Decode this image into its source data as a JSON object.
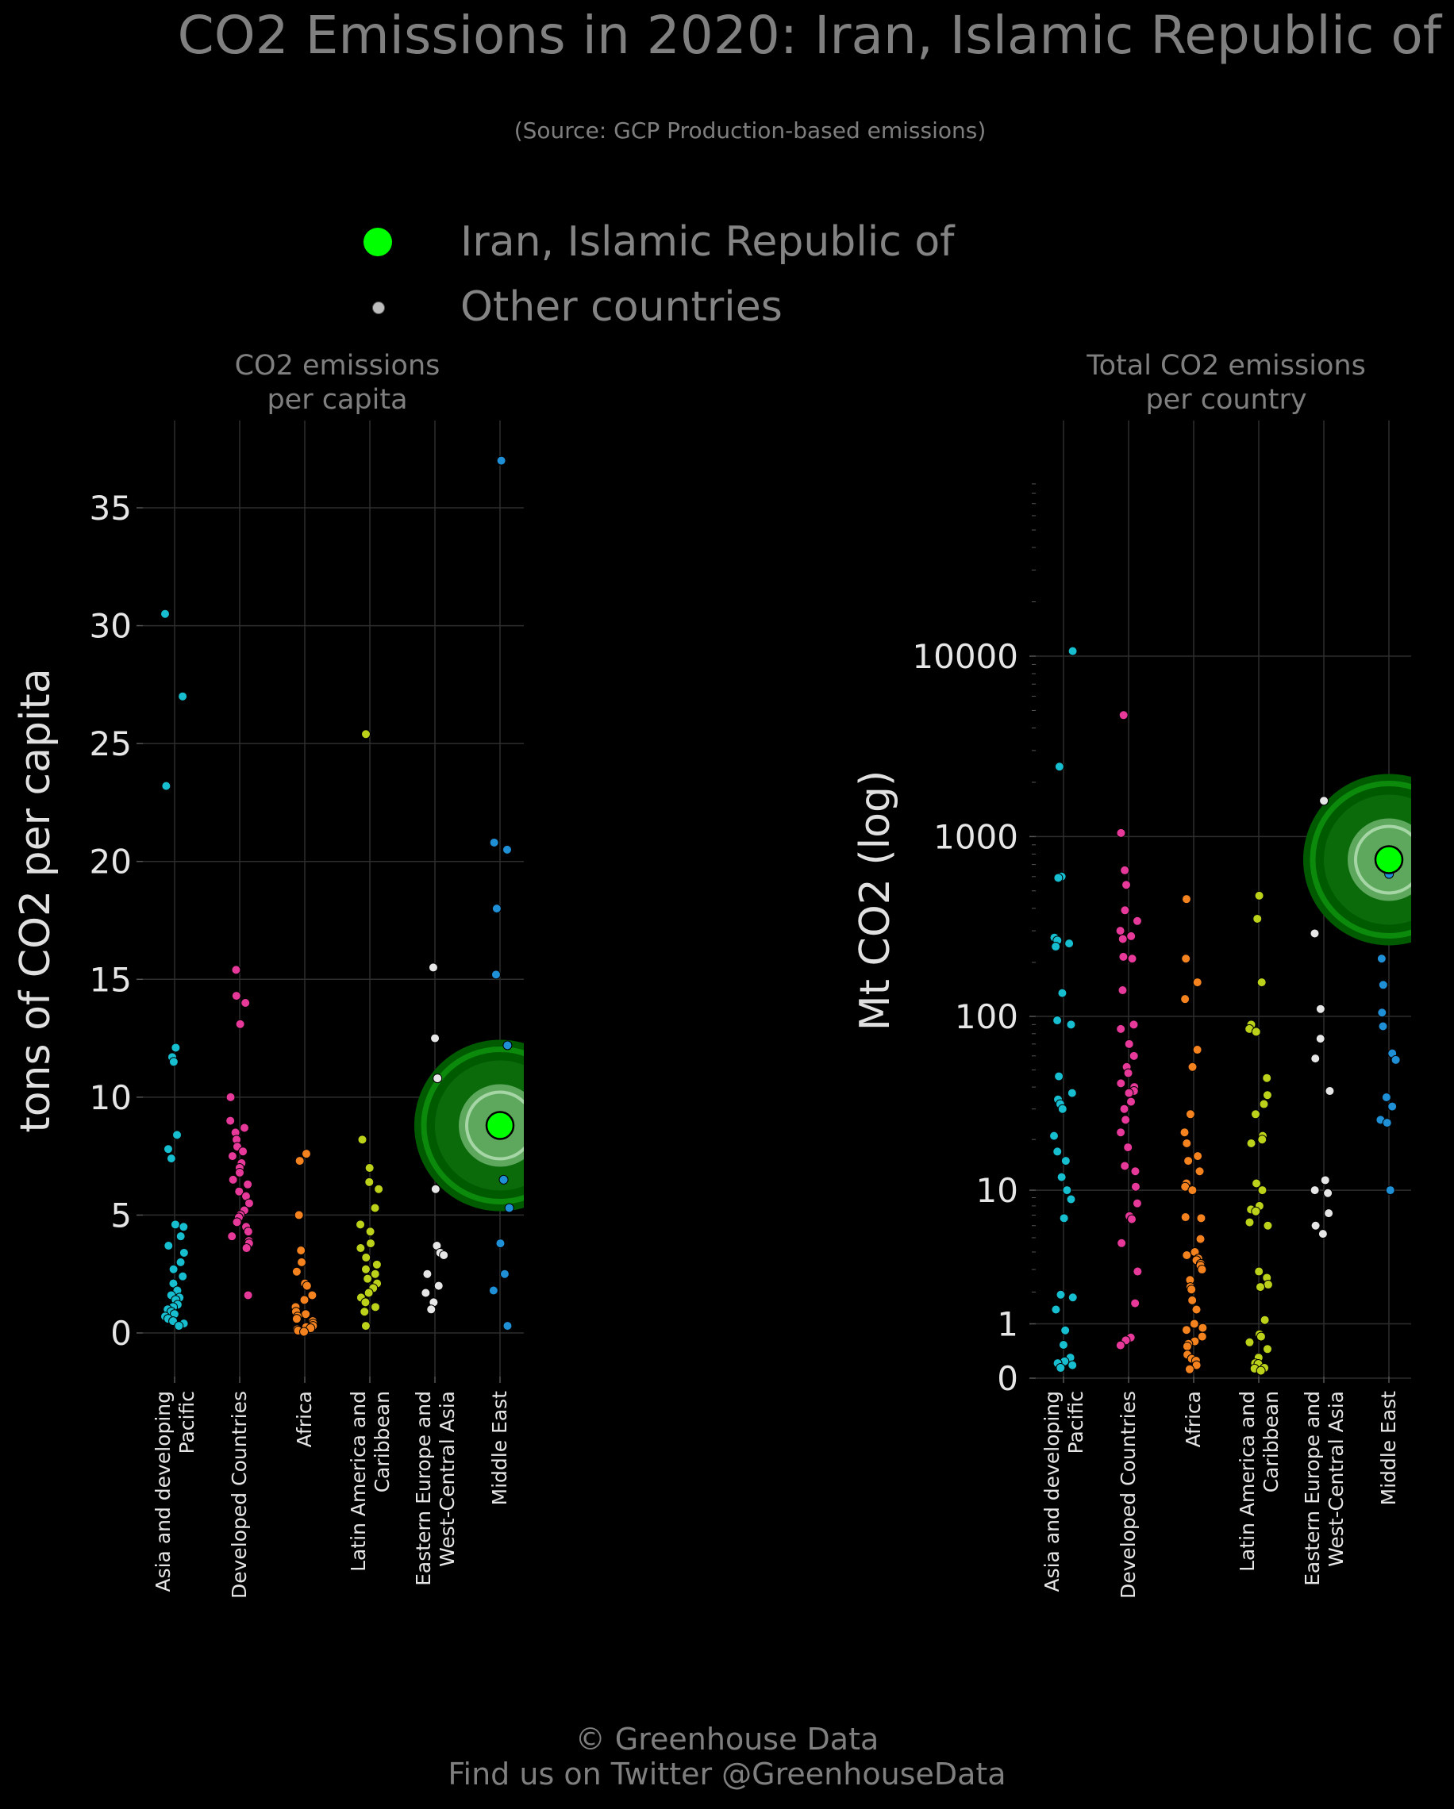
{
  "title": "CO2 Emissions in 2020: Iran, Islamic Republic of",
  "subtitle": "(Source: GCP Production-based emissions)",
  "legend": {
    "highlight_label": "Iran, Islamic Republic of",
    "other_label": "Other countries",
    "highlight_color": "#00ff00",
    "other_color": "#bdbdbd"
  },
  "footer": {
    "line1": "© Greenhouse Data",
    "line2": "Find us on Twitter @GreenhouseData"
  },
  "colors": {
    "Asia and developing Pacific": "#17becf",
    "Developed Countries": "#e7399a",
    "Africa": "#f4831f",
    "Latin America and Caribbean": "#bcd21a",
    "Eastern Europe and West-Central Asia": "#e6e6e6",
    "Middle East": "#1f8fd6",
    "highlight": "#00ff00",
    "halo": "#0a7a0a"
  },
  "chart_data": [
    {
      "type": "scatter",
      "title": "CO2 emissions\nper capita",
      "ylabel": "tons of CO2 per capita",
      "ylim": [
        -1.3,
        39
      ],
      "yticks": [
        "0",
        "5",
        "10",
        "15",
        "20",
        "25",
        "30",
        "35"
      ],
      "categories": [
        "Asia and developing\nPacific",
        "Developed Countries",
        "Africa",
        "Latin America and\nCaribbean",
        "Eastern Europe and\nWest-Central Asia",
        "Middle East"
      ],
      "highlight": {
        "category": "Middle East",
        "y": 8.8,
        "label": "Iran, Islamic Republic of"
      },
      "series": [
        {
          "category": "Asia and developing Pacific",
          "values": [
            30.5,
            27.0,
            23.2,
            12.1,
            11.7,
            11.5,
            8.4,
            7.8,
            7.4,
            4.6,
            4.5,
            4.1,
            3.7,
            3.4,
            3.0,
            2.7,
            2.4,
            2.1,
            1.8,
            1.6,
            1.5,
            1.4,
            1.2,
            1.1,
            1.0,
            0.9,
            0.8,
            0.7,
            0.6,
            0.5,
            0.4,
            0.3
          ]
        },
        {
          "category": "Developed Countries",
          "values": [
            15.4,
            14.3,
            14.0,
            13.1,
            10.0,
            9.0,
            8.7,
            8.5,
            8.2,
            7.9,
            7.7,
            7.5,
            7.2,
            7.0,
            6.8,
            6.5,
            6.3,
            6.0,
            5.8,
            5.5,
            5.2,
            5.0,
            4.9,
            4.7,
            4.5,
            4.3,
            4.1,
            3.9,
            3.8,
            3.6,
            1.6
          ]
        },
        {
          "category": "Africa",
          "values": [
            7.6,
            7.3,
            5.0,
            3.5,
            3.0,
            2.6,
            2.1,
            2.0,
            1.6,
            1.4,
            1.1,
            0.9,
            0.8,
            0.7,
            0.6,
            0.5,
            0.4,
            0.3,
            0.25,
            0.2,
            0.15,
            0.1,
            0.05
          ]
        },
        {
          "category": "Latin America and Caribbean",
          "values": [
            25.4,
            8.2,
            7.0,
            6.4,
            6.1,
            5.3,
            4.6,
            4.3,
            3.8,
            3.6,
            3.2,
            2.9,
            2.7,
            2.5,
            2.3,
            2.1,
            1.9,
            1.7,
            1.5,
            1.3,
            1.1,
            0.9,
            0.3
          ]
        },
        {
          "category": "Eastern Europe and West-Central Asia",
          "values": [
            15.5,
            12.5,
            10.8,
            6.1,
            3.7,
            3.4,
            3.3,
            2.5,
            2.0,
            1.7,
            1.3,
            1.0
          ]
        },
        {
          "category": "Middle East",
          "values": [
            37.0,
            20.8,
            20.5,
            18.0,
            15.2,
            12.2,
            8.8,
            6.5,
            5.3,
            3.8,
            2.5,
            1.8,
            0.3
          ]
        }
      ]
    },
    {
      "type": "scatter",
      "title": "Total CO2 emissions\nper country",
      "ylabel": "Mt CO2 (log)",
      "scale": "log",
      "ylim": [
        0,
        20000
      ],
      "yticks": [
        "0",
        "1",
        "10",
        "100",
        "1000",
        "10000"
      ],
      "categories": [
        "Asia and developing\nPacific",
        "Developed Countries",
        "Africa",
        "Latin America and\nCaribbean",
        "Eastern Europe and\nWest-Central Asia",
        "Middle East"
      ],
      "highlight": {
        "category": "Middle East",
        "y": 745,
        "label": "Iran, Islamic Republic of"
      },
      "series": [
        {
          "category": "Asia and developing Pacific",
          "values": [
            10668,
            2442,
            600,
            590,
            275,
            265,
            255,
            245,
            135,
            95,
            90,
            46,
            37,
            34,
            32,
            30,
            21,
            17,
            15,
            12,
            10,
            8.8,
            6.7,
            1.9,
            1.8,
            1.4,
            0.84,
            0.53,
            0.3,
            0.24,
            0.21,
            0.18,
            0.14
          ]
        },
        {
          "category": "Developed Countries",
          "values": [
            4713,
            1047,
            650,
            540,
            390,
            340,
            300,
            280,
            270,
            215,
            210,
            140,
            90,
            85,
            70,
            60,
            52,
            48,
            42,
            40,
            38,
            37,
            33,
            30,
            26,
            22,
            18,
            14,
            13,
            10.5,
            8.3,
            6.9,
            6.6,
            4.6,
            2.9,
            1.6,
            0.68,
            0.62,
            0.52
          ]
        },
        {
          "category": "Africa",
          "values": [
            450,
            210,
            155,
            125,
            65,
            52,
            28,
            22,
            19,
            16,
            15,
            13,
            11,
            10.5,
            10,
            6.8,
            6.7,
            4.9,
            4.0,
            3.8,
            3.6,
            3.5,
            3.3,
            3.2,
            3.0,
            2.5,
            2.2,
            2.1,
            1.7,
            1.4,
            1.0,
            0.9,
            0.85,
            0.7,
            0.6,
            0.55,
            0.5,
            0.35,
            0.28,
            0.25,
            0.18,
            0.12
          ]
        },
        {
          "category": "Latin America and Caribbean",
          "values": [
            470,
            350,
            155,
            90,
            85,
            82,
            45,
            36,
            32,
            28,
            21,
            20,
            19,
            11,
            10,
            8,
            7.6,
            7.4,
            6.3,
            6.0,
            2.9,
            2.6,
            2.3,
            2.2,
            1.1,
            0.75,
            0.7,
            0.58,
            0.45,
            0.3,
            0.21,
            0.2,
            0.14,
            0.13,
            0.1
          ]
        },
        {
          "category": "Eastern Europe and West-Central Asia",
          "values": [
            1580,
            290,
            110,
            75,
            58,
            38,
            11.5,
            10,
            9.6,
            7.2,
            6.0,
            5.3
          ]
        },
        {
          "category": "Middle East",
          "values": [
            745,
            620,
            210,
            150,
            105,
            88,
            62,
            57,
            35,
            31,
            26,
            25,
            10
          ]
        }
      ]
    }
  ]
}
